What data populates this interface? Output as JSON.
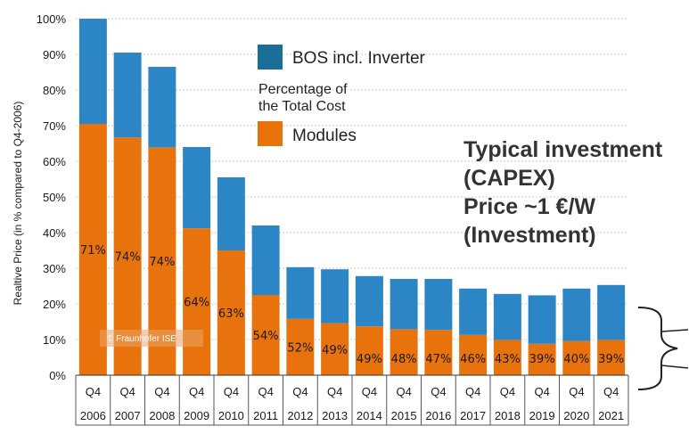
{
  "chart_data": {
    "type": "bar",
    "stacked": true,
    "ylabel": "Realtive Price (in % compared to Q4-2006)",
    "ylim": [
      0,
      100
    ],
    "yticks": [
      "0%",
      "10%",
      "20%",
      "30%",
      "40%",
      "50%",
      "60%",
      "70%",
      "80%",
      "90%",
      "100%"
    ],
    "quarter_label": "Q4",
    "categories": [
      "2006",
      "2007",
      "2008",
      "2009",
      "2010",
      "2011",
      "2012",
      "2013",
      "2014",
      "2015",
      "2016",
      "2017",
      "2018",
      "2019",
      "2020",
      "2021"
    ],
    "totals": [
      100,
      90.5,
      86.5,
      64,
      55.5,
      42,
      30.3,
      29.7,
      27.8,
      27,
      27,
      24.3,
      22.8,
      22.4,
      24.3,
      25.3
    ],
    "series": [
      {
        "name": "Modules",
        "color": "#E8720C",
        "values": [
          70.5,
          66.7,
          63.9,
          41.2,
          35.0,
          22.5,
          15.8,
          14.6,
          13.7,
          12.9,
          12.7,
          11.3,
          9.9,
          8.8,
          9.6,
          9.9
        ]
      },
      {
        "name": "BOS incl. Inverter",
        "color": "#2C86C6",
        "values": [
          29.5,
          23.8,
          22.6,
          22.8,
          20.5,
          19.5,
          14.5,
          15.1,
          14.1,
          14.1,
          14.3,
          13.0,
          12.9,
          13.6,
          14.7,
          15.4
        ]
      }
    ],
    "module_share_labels": [
      "71%",
      "74%",
      "74%",
      "64%",
      "63%",
      "54%",
      "52%",
      "49%",
      "49%",
      "48%",
      "47%",
      "46%",
      "43%",
      "39%",
      "40%",
      "39%"
    ],
    "legend": {
      "bos": "BOS incl. Inverter",
      "caption_line1": "Percentage of",
      "caption_line2": "the Total Cost",
      "modules": "Modules",
      "bos_color": "#1B6E98",
      "modules_color": "#E8720C"
    },
    "annotation": [
      "Typical investment",
      "(CAPEX)",
      "Price ~1 €/W",
      "(Investment)"
    ],
    "watermark": "© Fraunhofer ISE",
    "grid": true
  }
}
